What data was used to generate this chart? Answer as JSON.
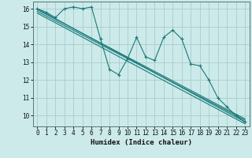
{
  "xlabel": "Humidex (Indice chaleur)",
  "bg_color": "#cceaea",
  "grid_color": "#aacccc",
  "line_color": "#1a7878",
  "xlim": [
    -0.5,
    23.5
  ],
  "ylim": [
    9.4,
    16.4
  ],
  "xticks": [
    0,
    1,
    2,
    3,
    4,
    5,
    6,
    7,
    8,
    9,
    10,
    11,
    12,
    13,
    14,
    15,
    16,
    17,
    18,
    19,
    20,
    21,
    22,
    23
  ],
  "yticks": [
    10,
    11,
    12,
    13,
    14,
    15,
    16
  ],
  "zigzag_x": [
    0,
    1,
    2,
    3,
    4,
    5,
    6,
    7,
    8,
    9,
    10,
    11,
    12,
    13,
    14,
    15,
    16,
    17,
    18,
    19,
    20,
    21,
    22,
    23
  ],
  "zigzag_y": [
    16.0,
    15.8,
    15.5,
    16.0,
    16.1,
    16.0,
    16.1,
    14.3,
    12.6,
    12.3,
    13.2,
    14.4,
    13.3,
    13.1,
    14.4,
    14.8,
    14.3,
    12.9,
    12.8,
    12.0,
    11.0,
    10.5,
    10.0,
    9.65
  ],
  "trend1_x": [
    0,
    23
  ],
  "trend1_y": [
    16.0,
    9.65
  ],
  "trend2_x": [
    0,
    23
  ],
  "trend2_y": [
    15.85,
    9.75
  ],
  "trend3_x": [
    0,
    23
  ],
  "trend3_y": [
    15.75,
    9.55
  ],
  "trend4_x": [
    0,
    23
  ],
  "trend4_y": [
    15.95,
    9.82
  ]
}
